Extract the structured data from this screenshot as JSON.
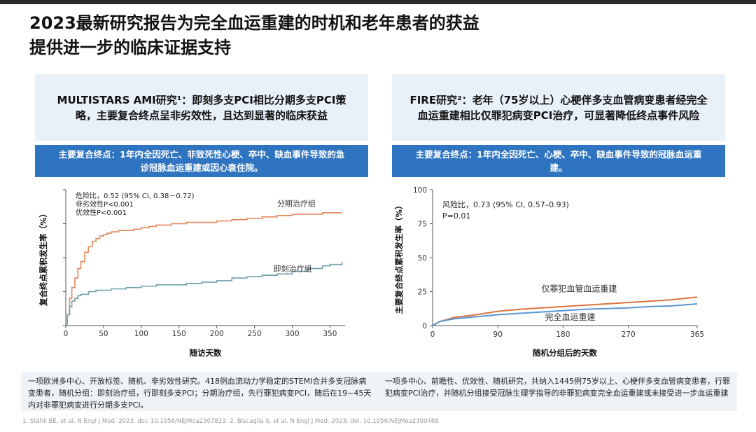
{
  "title": {
    "line1": "2023最新研究报告为完全血运重建的时机和老年患者的获益",
    "line2": "提供进一步的临床证据支持"
  },
  "left_panel": {
    "header": "MULTISTARS AMI研究¹：即刻多支PCI相比分期多支PCI策略，主要复合终点呈非劣效性，且达到显著的临床获益",
    "endpoint": "主要复合终点：1年内全因死亡、非致死性心梗、卒中、缺血事件导致的急诊冠脉血运重建或因心衰住院。",
    "footer": "一项欧洲多中心、开放标签、随机、非劣效性研究。418例血流动力学稳定的STEMI合并多支冠脉病变患者，随机分组：即刻治疗组，行即刻多支PCI；分期治疗组，先行罪犯病变PCI，随后在19~45天内对非罪犯病变进行分期多支PCI。"
  },
  "right_panel": {
    "header": "FIRE研究²：老年（75岁以上）心梗伴多支血管病变患者经完全血运重建相比仅罪犯病变PCI治疗，可显著降低终点事件风险",
    "endpoint": "主要复合终点：1年内全因死亡、心梗、卒中、缺血事件导致的冠脉血运重建。",
    "footer": "一项多中心、前瞻性、优效性、随机研究，共纳入1445例75岁以上、心梗伴多支血管病变患者，行罪犯病变PCI治疗，并随机分组接受冠脉生理学指导的非罪犯病变完全血运重建或未接受进一步血运重建"
  },
  "references": "1. Stähli BE, et al. N Engl J Med. 2023. doi: 10.1056/NEJMoa2307823. 2. Biscaglia S, et al. N Engl J Med. 2023. doi: 10.1056/NEJMoa2300468.",
  "colors": {
    "orange": "#e3875a",
    "blue": "#6fa0a5",
    "blue2": "#5b95d2",
    "orange2": "#d9743f"
  },
  "chart_data": [
    {
      "type": "line",
      "title": "",
      "xlabel": "随访天数",
      "ylabel": "复合终点累积发生率（%）",
      "xlim": [
        0,
        370
      ],
      "ylim": [
        0,
        100
      ],
      "xticks": [
        0,
        50,
        100,
        150,
        200,
        250,
        300,
        350
      ],
      "xtick_labels": [
        "0",
        "50",
        "100",
        "150",
        "200",
        "250",
        "300",
        "350"
      ],
      "annotations": [
        "危险比，0.52 (95% CI, 0.38－0.72)",
        "非劣效性P<0.001",
        "优效性P<0.001"
      ],
      "series": [
        {
          "name": "分期治疗组",
          "color": "#e3875a",
          "x": [
            0,
            2,
            5,
            8,
            12,
            16,
            20,
            25,
            30,
            35,
            40,
            45,
            50,
            55,
            60,
            70,
            80,
            90,
            100,
            110,
            120,
            140,
            160,
            180,
            200,
            220,
            240,
            260,
            280,
            300,
            320,
            340,
            350,
            366
          ],
          "y": [
            0,
            8,
            20,
            28,
            35,
            42,
            47,
            54,
            58,
            62,
            64,
            66,
            67,
            68,
            69,
            70,
            70,
            71,
            72,
            73,
            74,
            75,
            76,
            76,
            77,
            78,
            79,
            80,
            81,
            82,
            82,
            83,
            83,
            83
          ]
        },
        {
          "name": "即刻治疗组",
          "color": "#6fa0a5",
          "x": [
            0,
            2,
            5,
            8,
            12,
            16,
            20,
            30,
            40,
            50,
            60,
            70,
            80,
            90,
            100,
            120,
            140,
            160,
            180,
            200,
            220,
            240,
            260,
            280,
            300,
            320,
            340,
            350,
            366
          ],
          "y": [
            0,
            8,
            14,
            18,
            20,
            22,
            23,
            25,
            26,
            26,
            27,
            27,
            28,
            28,
            29,
            30,
            30,
            31,
            32,
            33,
            35,
            36,
            37,
            38,
            40,
            42,
            44,
            45,
            47
          ]
        }
      ]
    },
    {
      "type": "line",
      "title": "",
      "xlabel": "随机分组后的天数",
      "ylabel": "主要复合终点累积发生率（%）",
      "xlim": [
        0,
        365
      ],
      "ylim": [
        0,
        100
      ],
      "xticks": [
        0,
        90,
        180,
        270,
        365
      ],
      "yticks": [
        0,
        25,
        50,
        75,
        100
      ],
      "annotations": [
        "风险比，0.73 (95% CI, 0.57–0.93)",
        "P=0.01"
      ],
      "series": [
        {
          "name": "仅罪犯血管血运重建",
          "color": "#d9743f",
          "x": [
            0,
            10,
            30,
            60,
            90,
            120,
            150,
            180,
            210,
            240,
            270,
            300,
            330,
            365
          ],
          "y": [
            0,
            3,
            6,
            8,
            10.5,
            12,
            13,
            14,
            15,
            16,
            17,
            18,
            19,
            21
          ]
        },
        {
          "name": "完全血运重建",
          "color": "#5b95d2",
          "x": [
            0,
            10,
            30,
            60,
            90,
            120,
            150,
            180,
            210,
            240,
            270,
            300,
            330,
            365
          ],
          "y": [
            0,
            3,
            5,
            6.5,
            8,
            9,
            10,
            11,
            12,
            12.5,
            13,
            14,
            14.5,
            16
          ]
        }
      ]
    }
  ]
}
